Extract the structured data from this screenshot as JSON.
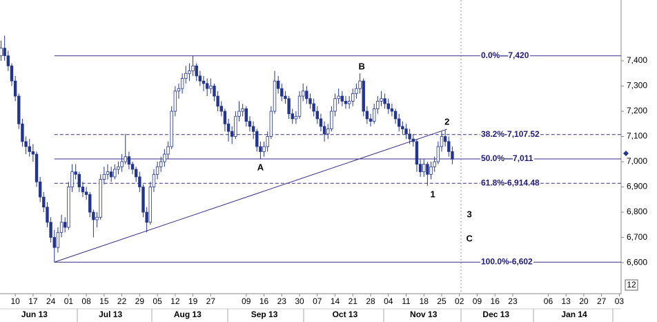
{
  "chart_data": {
    "type": "candlestick",
    "color": "#24358f",
    "level_color": "#3a2d8c",
    "xlim": [
      -0.3,
      174.5
    ],
    "ylim": [
      6477,
      7641
    ],
    "yticks": [
      {
        "value": 6600,
        "label": "6,600"
      },
      {
        "value": 6700,
        "label": "6,700"
      },
      {
        "value": 6800,
        "label": "6,800"
      },
      {
        "value": 6900,
        "label": "6,900"
      },
      {
        "value": 7000,
        "label": "7,000"
      },
      {
        "value": 7100,
        "label": "7,100"
      },
      {
        "value": 7200,
        "label": "7,200"
      },
      {
        "value": 7300,
        "label": "7,300"
      },
      {
        "value": 7400,
        "label": "7,400"
      }
    ],
    "xticks": [
      {
        "value": 4,
        "label": "10"
      },
      {
        "value": 9,
        "label": "17"
      },
      {
        "value": 14,
        "label": "24"
      },
      {
        "value": 19,
        "label": "01"
      },
      {
        "value": 24,
        "label": "08"
      },
      {
        "value": 29,
        "label": "15"
      },
      {
        "value": 34,
        "label": "22"
      },
      {
        "value": 39,
        "label": "29"
      },
      {
        "value": 44,
        "label": "05"
      },
      {
        "value": 49,
        "label": "12"
      },
      {
        "value": 54,
        "label": "19"
      },
      {
        "value": 59,
        "label": "27"
      },
      {
        "value": 69,
        "label": "09"
      },
      {
        "value": 74,
        "label": "16"
      },
      {
        "value": 79,
        "label": "23"
      },
      {
        "value": 84,
        "label": "30"
      },
      {
        "value": 89,
        "label": "07"
      },
      {
        "value": 94,
        "label": "14"
      },
      {
        "value": 99,
        "label": "21"
      },
      {
        "value": 104,
        "label": "28"
      },
      {
        "value": 109,
        "label": "04"
      },
      {
        "value": 114,
        "label": "11"
      },
      {
        "value": 119,
        "label": "18"
      },
      {
        "value": 124,
        "label": "25"
      },
      {
        "value": 129,
        "label": "02"
      },
      {
        "value": 134,
        "label": "09"
      },
      {
        "value": 139,
        "label": "16"
      },
      {
        "value": 144,
        "label": "23"
      },
      {
        "value": 154,
        "label": "06"
      },
      {
        "value": 159,
        "label": "13"
      },
      {
        "value": 164,
        "label": "20"
      },
      {
        "value": 169,
        "label": "27"
      },
      {
        "value": 174,
        "label": "03"
      }
    ],
    "months": [
      {
        "value": 9.4,
        "label": "Jun 13"
      },
      {
        "value": 30.8,
        "label": "Jul 13"
      },
      {
        "value": 52.5,
        "label": "Aug 13"
      },
      {
        "value": 74.1,
        "label": "Sep 13"
      },
      {
        "value": 96.8,
        "label": "Oct 13"
      },
      {
        "value": 118.9,
        "label": "Nov 13"
      },
      {
        "value": 139.3,
        "label": "Dec 13"
      },
      {
        "value": 161.3,
        "label": "Jan 14"
      }
    ],
    "levels": [
      {
        "label": "0.0%—7,420",
        "value": 7420,
        "style": "solid"
      },
      {
        "label": "38.2%-7,107.52",
        "value": 7107.52,
        "style": "dashed"
      },
      {
        "label": "50.0%—7,011",
        "value": 7011,
        "style": "solid"
      },
      {
        "label": "61.8%-6,914.48",
        "value": 6914.48,
        "style": "dashed"
      },
      {
        "label": "100.0%-6,602",
        "value": 6602,
        "style": "solid"
      }
    ],
    "trendline": {
      "x": [
        15,
        125.5
      ],
      "y": [
        6602,
        7129
      ]
    },
    "annotations": [
      {
        "text": "A",
        "x": 73,
        "y": 6975
      },
      {
        "text": "B",
        "x": 101.5,
        "y": 7375
      },
      {
        "text": "1",
        "x": 121.5,
        "y": 6868
      },
      {
        "text": "2",
        "x": 125.5,
        "y": 7156
      },
      {
        "text": "3",
        "x": 131.8,
        "y": 6789
      },
      {
        "text": "C",
        "x": 131.8,
        "y": 6693
      }
    ],
    "corner_label": "12",
    "candles": [
      [
        7420,
        7480,
        7400,
        7450
      ],
      [
        7450,
        7500,
        7400,
        7420
      ],
      [
        7420,
        7440,
        7360,
        7380
      ],
      [
        7380,
        7390,
        7300,
        7320
      ],
      [
        7320,
        7340,
        7240,
        7260
      ],
      [
        7260,
        7270,
        7130,
        7150
      ],
      [
        7150,
        7170,
        7060,
        7080
      ],
      [
        7080,
        7100,
        7030,
        7060
      ],
      [
        7060,
        7090,
        7020,
        7040
      ],
      [
        7040,
        7070,
        7000,
        7030
      ],
      [
        7030,
        7040,
        6900,
        6920
      ],
      [
        6920,
        6940,
        6840,
        6860
      ],
      [
        6860,
        6880,
        6800,
        6820
      ],
      [
        6820,
        6840,
        6740,
        6760
      ],
      [
        6760,
        6780,
        6680,
        6700
      ],
      [
        6700,
        6730,
        6602,
        6660
      ],
      [
        6660,
        6740,
        6640,
        6720
      ],
      [
        6720,
        6790,
        6700,
        6760
      ],
      [
        6760,
        6780,
        6720,
        6740
      ],
      [
        6740,
        6920,
        6730,
        6900
      ],
      [
        6900,
        6990,
        6880,
        6960
      ],
      [
        6960,
        6990,
        6930,
        6950
      ],
      [
        6950,
        6960,
        6880,
        6900
      ],
      [
        6900,
        6920,
        6860,
        6880
      ],
      [
        6880,
        6900,
        6850,
        6870
      ],
      [
        6870,
        6880,
        6780,
        6800
      ],
      [
        6800,
        6810,
        6700,
        6770
      ],
      [
        6770,
        6800,
        6740,
        6780
      ],
      [
        6780,
        6950,
        6770,
        6930
      ],
      [
        6930,
        6980,
        6910,
        6950
      ],
      [
        6950,
        6990,
        6930,
        6960
      ],
      [
        6960,
        6980,
        6920,
        6940
      ],
      [
        6940,
        6990,
        6930,
        6970
      ],
      [
        6970,
        7000,
        6950,
        6980
      ],
      [
        6980,
        7030,
        6960,
        7000
      ],
      [
        7000,
        7110,
        6990,
        7020
      ],
      [
        7020,
        7040,
        6970,
        6990
      ],
      [
        6990,
        7000,
        6950,
        6970
      ],
      [
        6970,
        6980,
        6920,
        6940
      ],
      [
        6940,
        6960,
        6880,
        6900
      ],
      [
        6900,
        6910,
        6780,
        6800
      ],
      [
        6800,
        6820,
        6720,
        6760
      ],
      [
        6760,
        6920,
        6750,
        6900
      ],
      [
        6900,
        6970,
        6880,
        6950
      ],
      [
        6950,
        7000,
        6930,
        6980
      ],
      [
        6980,
        7020,
        6960,
        7000
      ],
      [
        7000,
        7050,
        6980,
        7030
      ],
      [
        7030,
        7080,
        7010,
        7060
      ],
      [
        7060,
        7220,
        7050,
        7200
      ],
      [
        7200,
        7300,
        7180,
        7280
      ],
      [
        7280,
        7310,
        7250,
        7290
      ],
      [
        7290,
        7350,
        7270,
        7330
      ],
      [
        7330,
        7380,
        7310,
        7350
      ],
      [
        7350,
        7390,
        7320,
        7360
      ],
      [
        7360,
        7420,
        7340,
        7380
      ],
      [
        7380,
        7390,
        7320,
        7340
      ],
      [
        7340,
        7360,
        7300,
        7320
      ],
      [
        7320,
        7340,
        7280,
        7310
      ],
      [
        7310,
        7330,
        7260,
        7290
      ],
      [
        7290,
        7330,
        7270,
        7300
      ],
      [
        7300,
        7310,
        7240,
        7260
      ],
      [
        7260,
        7280,
        7200,
        7220
      ],
      [
        7220,
        7240,
        7180,
        7200
      ],
      [
        7200,
        7210,
        7120,
        7150
      ],
      [
        7150,
        7170,
        7080,
        7120
      ],
      [
        7120,
        7140,
        7070,
        7100
      ],
      [
        7100,
        7200,
        7090,
        7180
      ],
      [
        7180,
        7240,
        7160,
        7200
      ],
      [
        7200,
        7230,
        7180,
        7210
      ],
      [
        7210,
        7220,
        7140,
        7160
      ],
      [
        7160,
        7180,
        7120,
        7140
      ],
      [
        7140,
        7160,
        7090,
        7120
      ],
      [
        7120,
        7130,
        7040,
        7060
      ],
      [
        7060,
        7080,
        7010,
        7040
      ],
      [
        7040,
        7080,
        7020,
        7060
      ],
      [
        7060,
        7120,
        7040,
        7100
      ],
      [
        7100,
        7220,
        7090,
        7200
      ],
      [
        7200,
        7360,
        7190,
        7320
      ],
      [
        7320,
        7340,
        7270,
        7290
      ],
      [
        7290,
        7310,
        7240,
        7260
      ],
      [
        7260,
        7280,
        7230,
        7250
      ],
      [
        7250,
        7260,
        7170,
        7190
      ],
      [
        7190,
        7210,
        7150,
        7170
      ],
      [
        7170,
        7200,
        7150,
        7180
      ],
      [
        7180,
        7280,
        7170,
        7260
      ],
      [
        7260,
        7310,
        7240,
        7280
      ],
      [
        7280,
        7300,
        7230,
        7250
      ],
      [
        7250,
        7270,
        7210,
        7230
      ],
      [
        7230,
        7250,
        7180,
        7200
      ],
      [
        7200,
        7220,
        7150,
        7170
      ],
      [
        7170,
        7190,
        7120,
        7140
      ],
      [
        7140,
        7160,
        7080,
        7110
      ],
      [
        7110,
        7150,
        7090,
        7130
      ],
      [
        7130,
        7220,
        7120,
        7200
      ],
      [
        7200,
        7270,
        7180,
        7250
      ],
      [
        7250,
        7290,
        7230,
        7260
      ],
      [
        7260,
        7280,
        7220,
        7240
      ],
      [
        7240,
        7260,
        7210,
        7230
      ],
      [
        7230,
        7260,
        7210,
        7240
      ],
      [
        7240,
        7290,
        7220,
        7270
      ],
      [
        7270,
        7310,
        7250,
        7290
      ],
      [
        7290,
        7350,
        7270,
        7320
      ],
      [
        7320,
        7330,
        7180,
        7200
      ],
      [
        7200,
        7220,
        7150,
        7170
      ],
      [
        7170,
        7190,
        7140,
        7160
      ],
      [
        7160,
        7230,
        7150,
        7210
      ],
      [
        7210,
        7260,
        7190,
        7240
      ],
      [
        7240,
        7280,
        7220,
        7250
      ],
      [
        7250,
        7270,
        7210,
        7230
      ],
      [
        7230,
        7250,
        7190,
        7210
      ],
      [
        7210,
        7230,
        7180,
        7200
      ],
      [
        7200,
        7210,
        7150,
        7170
      ],
      [
        7170,
        7190,
        7120,
        7140
      ],
      [
        7140,
        7160,
        7110,
        7130
      ],
      [
        7130,
        7150,
        7090,
        7110
      ],
      [
        7110,
        7130,
        7070,
        7090
      ],
      [
        7090,
        7110,
        7060,
        7080
      ],
      [
        7080,
        7090,
        6960,
        6990
      ],
      [
        6990,
        7010,
        6940,
        6960
      ],
      [
        6960,
        7010,
        6940,
        6990
      ],
      [
        6990,
        7000,
        6905,
        6950
      ],
      [
        6950,
        7000,
        6930,
        6980
      ],
      [
        6980,
        7020,
        6960,
        7000
      ],
      [
        7000,
        7080,
        6990,
        7060
      ],
      [
        7060,
        7120,
        7040,
        7100
      ],
      [
        7100,
        7125,
        7060,
        7080
      ],
      [
        7080,
        7100,
        7020,
        7040
      ],
      [
        7040,
        7060,
        6990,
        7010
      ]
    ]
  }
}
